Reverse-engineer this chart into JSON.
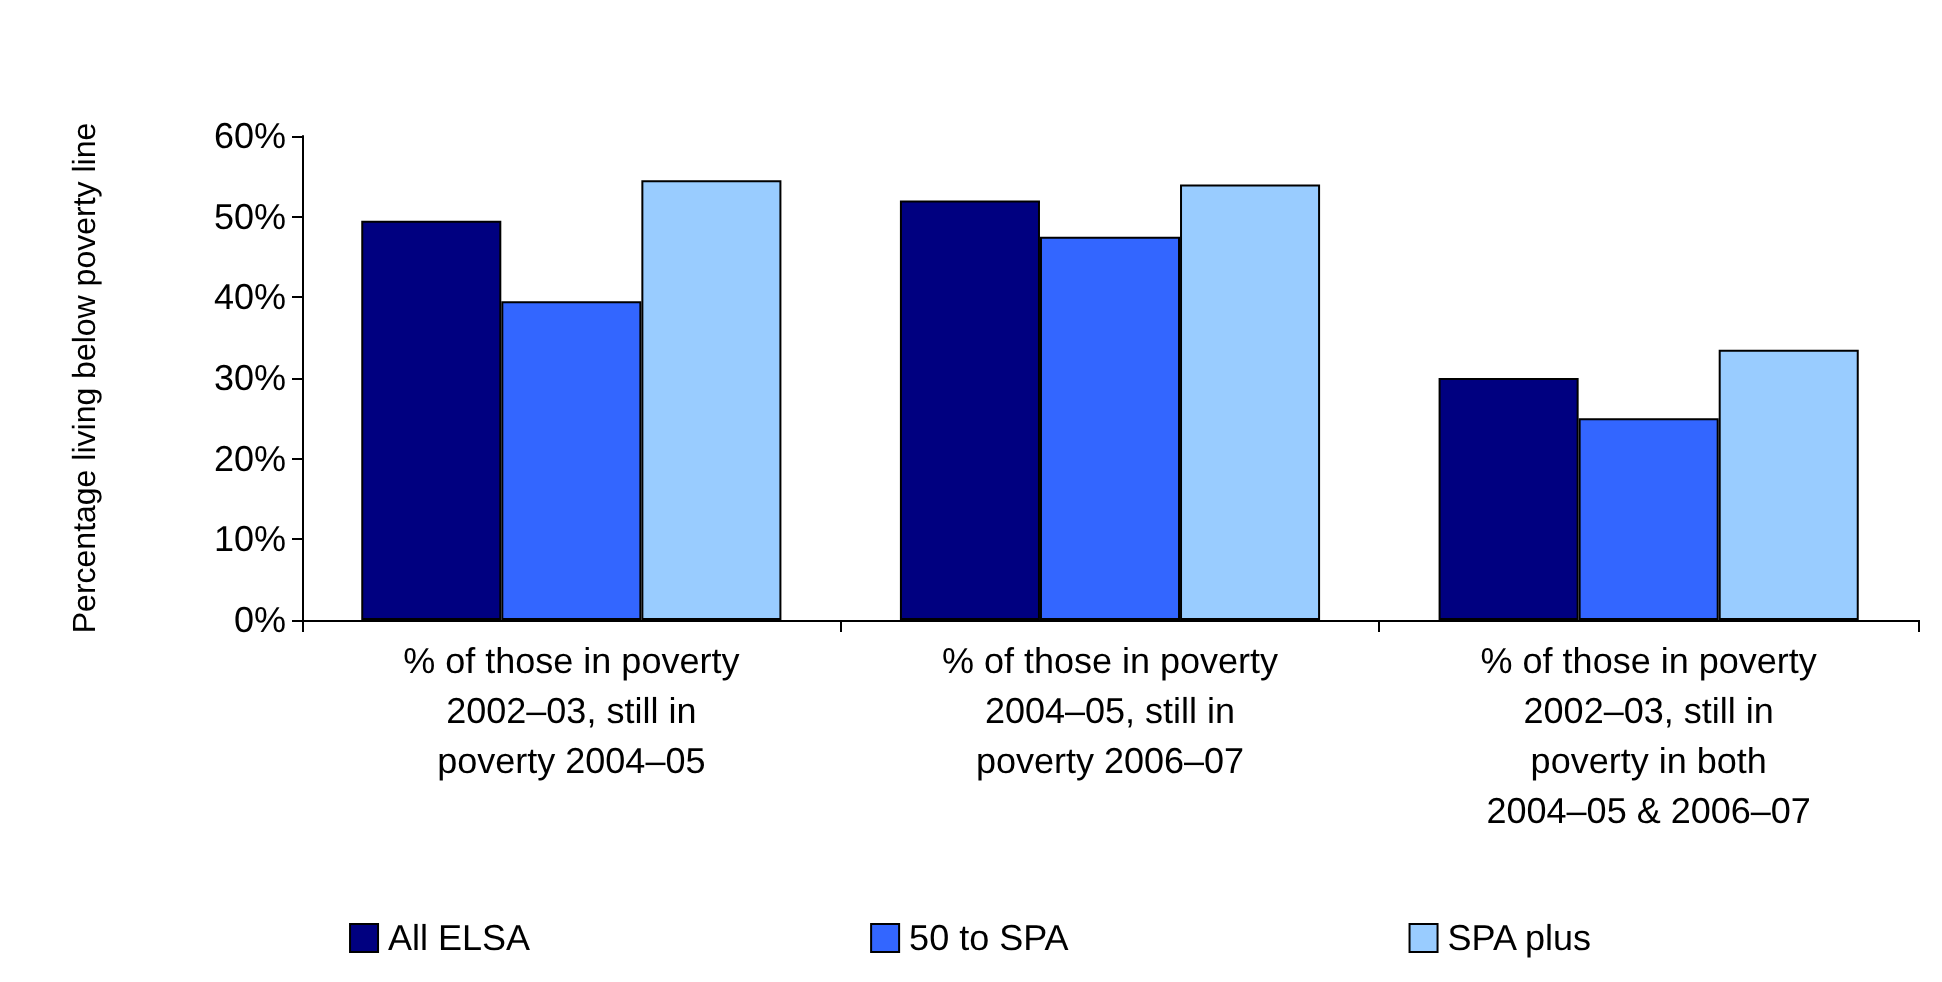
{
  "chart_data": {
    "type": "bar",
    "ylabel": "Percentage living below poverty line",
    "categories": [
      "% of those in poverty\n2002–03, still in\npoverty 2004–05",
      "% of those in poverty\n2004–05, still in\npoverty 2006–07",
      "% of those in poverty\n2002–03, still in\npoverty in both\n2004–05 & 2006–07"
    ],
    "series": [
      {
        "name": "All ELSA",
        "color": "#000080",
        "values": [
          49.5,
          52,
          30
        ]
      },
      {
        "name": "50 to SPA",
        "color": "#3366ff",
        "values": [
          39.5,
          47.5,
          25
        ]
      },
      {
        "name": "SPA plus",
        "color": "#99ccff",
        "values": [
          54.5,
          54,
          33.5
        ]
      }
    ],
    "ylim": [
      0,
      60
    ],
    "yticks": [
      {
        "value": 0,
        "label": "0%"
      },
      {
        "value": 10,
        "label": "10%"
      },
      {
        "value": 20,
        "label": "20%"
      },
      {
        "value": 30,
        "label": "30%"
      },
      {
        "value": 40,
        "label": "40%"
      },
      {
        "value": 50,
        "label": "50%"
      },
      {
        "value": 60,
        "label": "60%"
      }
    ],
    "grid": false,
    "legend": "bottom"
  }
}
